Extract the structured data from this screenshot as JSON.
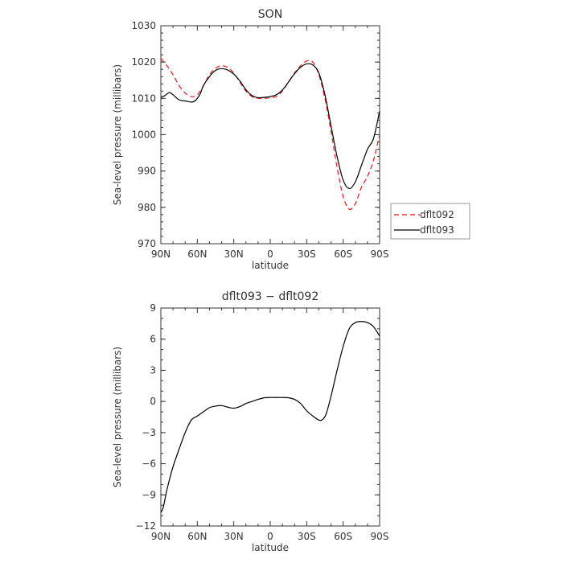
{
  "chart_data": [
    {
      "type": "line",
      "title": "SON",
      "xlabel": "latitude",
      "ylabel": "Sea-level pressure (millibars)",
      "xlim": [
        90,
        -90
      ],
      "ylim": [
        970,
        1030
      ],
      "x_ticks": [
        90,
        60,
        30,
        0,
        -30,
        -60,
        -90
      ],
      "x_tick_labels": [
        "90N",
        "60N",
        "30N",
        "0",
        "30S",
        "60S",
        "90S"
      ],
      "y_ticks": [
        970,
        980,
        990,
        1000,
        1010,
        1020,
        1030
      ],
      "y_tick_labels": [
        "970",
        "980",
        "990",
        "1000",
        "1010",
        "1020",
        "1030"
      ],
      "grid": false,
      "legend_position": "right",
      "series": [
        {
          "name": "dflt092",
          "color": "#e8151b",
          "dash": "dashed",
          "points": [
            [
              90,
              1021
            ],
            [
              85,
              1019
            ],
            [
              80,
              1016.5
            ],
            [
              75,
              1013.5
            ],
            [
              70,
              1011.5
            ],
            [
              65,
              1010.5
            ],
            [
              60,
              1011
            ],
            [
              55,
              1013.5
            ],
            [
              50,
              1016.5
            ],
            [
              45,
              1018.3
            ],
            [
              40,
              1019
            ],
            [
              35,
              1018.5
            ],
            [
              30,
              1017
            ],
            [
              25,
              1014.5
            ],
            [
              20,
              1012
            ],
            [
              15,
              1010.5
            ],
            [
              10,
              1010
            ],
            [
              5,
              1010
            ],
            [
              0,
              1010.2
            ],
            [
              -5,
              1010.5
            ],
            [
              -10,
              1012
            ],
            [
              -15,
              1014.5
            ],
            [
              -20,
              1017
            ],
            [
              -25,
              1019
            ],
            [
              -30,
              1020.3
            ],
            [
              -35,
              1020
            ],
            [
              -40,
              1016.5
            ],
            [
              -45,
              1010
            ],
            [
              -50,
              1001
            ],
            [
              -55,
              991
            ],
            [
              -60,
              983
            ],
            [
              -65,
              979.5
            ],
            [
              -70,
              981
            ],
            [
              -75,
              985.5
            ],
            [
              -80,
              988.5
            ],
            [
              -85,
              993
            ],
            [
              -90,
              1000
            ]
          ]
        },
        {
          "name": "dflt093",
          "color": "#000000",
          "dash": "solid",
          "points": [
            [
              90,
              1010.3
            ],
            [
              87,
              1010.7
            ],
            [
              83,
              1011.6
            ],
            [
              80,
              1011
            ],
            [
              75,
              1009.6
            ],
            [
              70,
              1009.3
            ],
            [
              65,
              1009
            ],
            [
              62,
              1009.3
            ],
            [
              58,
              1011
            ],
            [
              55,
              1013.5
            ],
            [
              50,
              1016
            ],
            [
              45,
              1017.7
            ],
            [
              40,
              1018.2
            ],
            [
              35,
              1017.8
            ],
            [
              30,
              1016.7
            ],
            [
              25,
              1014.8
            ],
            [
              20,
              1012.4
            ],
            [
              15,
              1010.8
            ],
            [
              10,
              1010.2
            ],
            [
              5,
              1010.3
            ],
            [
              0,
              1010.5
            ],
            [
              -5,
              1011
            ],
            [
              -10,
              1012.3
            ],
            [
              -15,
              1014.5
            ],
            [
              -20,
              1016.8
            ],
            [
              -25,
              1018.6
            ],
            [
              -30,
              1019.5
            ],
            [
              -35,
              1019.2
            ],
            [
              -40,
              1017
            ],
            [
              -45,
              1011
            ],
            [
              -50,
              1002.5
            ],
            [
              -55,
              994
            ],
            [
              -60,
              987.5
            ],
            [
              -65,
              985.2
            ],
            [
              -70,
              987
            ],
            [
              -75,
              991.5
            ],
            [
              -80,
              996
            ],
            [
              -85,
              999
            ],
            [
              -90,
              1006.5
            ]
          ]
        }
      ]
    },
    {
      "type": "line",
      "title": "dflt093 − dflt092",
      "xlabel": "latitude",
      "ylabel": "Sea-level pressure (millibars)",
      "xlim": [
        90,
        -90
      ],
      "ylim": [
        -12,
        9
      ],
      "x_ticks": [
        90,
        60,
        30,
        0,
        -30,
        -60,
        -90
      ],
      "x_tick_labels": [
        "90N",
        "60N",
        "30N",
        "0",
        "30S",
        "60S",
        "90S"
      ],
      "y_ticks": [
        -12,
        -9,
        -6,
        -3,
        0,
        3,
        6,
        9
      ],
      "y_tick_labels": [
        "−12",
        "−9",
        "−6",
        "−3",
        "0",
        "3",
        "6",
        "9"
      ],
      "grid": false,
      "series": [
        {
          "color": "#000000",
          "dash": "solid",
          "points": [
            [
              90,
              -10.7
            ],
            [
              88,
              -10.2
            ],
            [
              85,
              -8.5
            ],
            [
              80,
              -6.3
            ],
            [
              75,
              -4.6
            ],
            [
              70,
              -3.0
            ],
            [
              65,
              -1.8
            ],
            [
              60,
              -1.4
            ],
            [
              55,
              -1.0
            ],
            [
              50,
              -0.6
            ],
            [
              45,
              -0.45
            ],
            [
              40,
              -0.4
            ],
            [
              35,
              -0.55
            ],
            [
              30,
              -0.65
            ],
            [
              25,
              -0.5
            ],
            [
              20,
              -0.2
            ],
            [
              15,
              0.0
            ],
            [
              10,
              0.2
            ],
            [
              5,
              0.35
            ],
            [
              0,
              0.38
            ],
            [
              -5,
              0.38
            ],
            [
              -10,
              0.38
            ],
            [
              -15,
              0.35
            ],
            [
              -20,
              0.2
            ],
            [
              -25,
              -0.2
            ],
            [
              -30,
              -0.9
            ],
            [
              -35,
              -1.4
            ],
            [
              -40,
              -1.8
            ],
            [
              -43,
              -1.75
            ],
            [
              -46,
              -1.2
            ],
            [
              -50,
              0.5
            ],
            [
              -55,
              3.0
            ],
            [
              -60,
              5.3
            ],
            [
              -65,
              7.0
            ],
            [
              -70,
              7.6
            ],
            [
              -75,
              7.7
            ],
            [
              -80,
              7.6
            ],
            [
              -85,
              7.2
            ],
            [
              -90,
              6.3
            ]
          ]
        }
      ]
    }
  ]
}
